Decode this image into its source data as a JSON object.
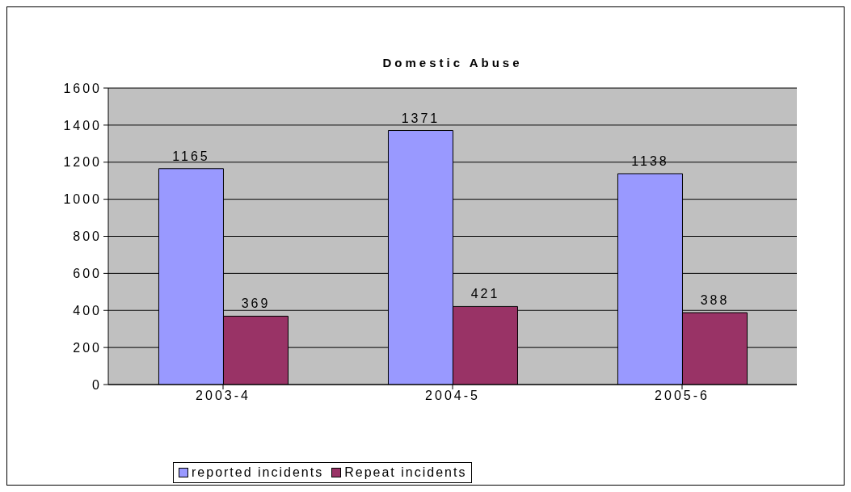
{
  "chart_data": {
    "type": "bar",
    "title": "Domestic Abuse",
    "categories": [
      "2003-4",
      "2004-5",
      "2005-6"
    ],
    "series": [
      {
        "name": "reported incidents",
        "color": "#9999ff",
        "values": [
          1165,
          1371,
          1138
        ]
      },
      {
        "name": "Repeat incidents",
        "color": "#993366",
        "values": [
          369,
          421,
          388
        ]
      }
    ],
    "ylim": [
      0,
      1600
    ],
    "yticks": [
      0,
      200,
      400,
      600,
      800,
      1000,
      1200,
      1400,
      1600
    ],
    "grid": "y",
    "legend": "bottom",
    "data_labels": true
  }
}
